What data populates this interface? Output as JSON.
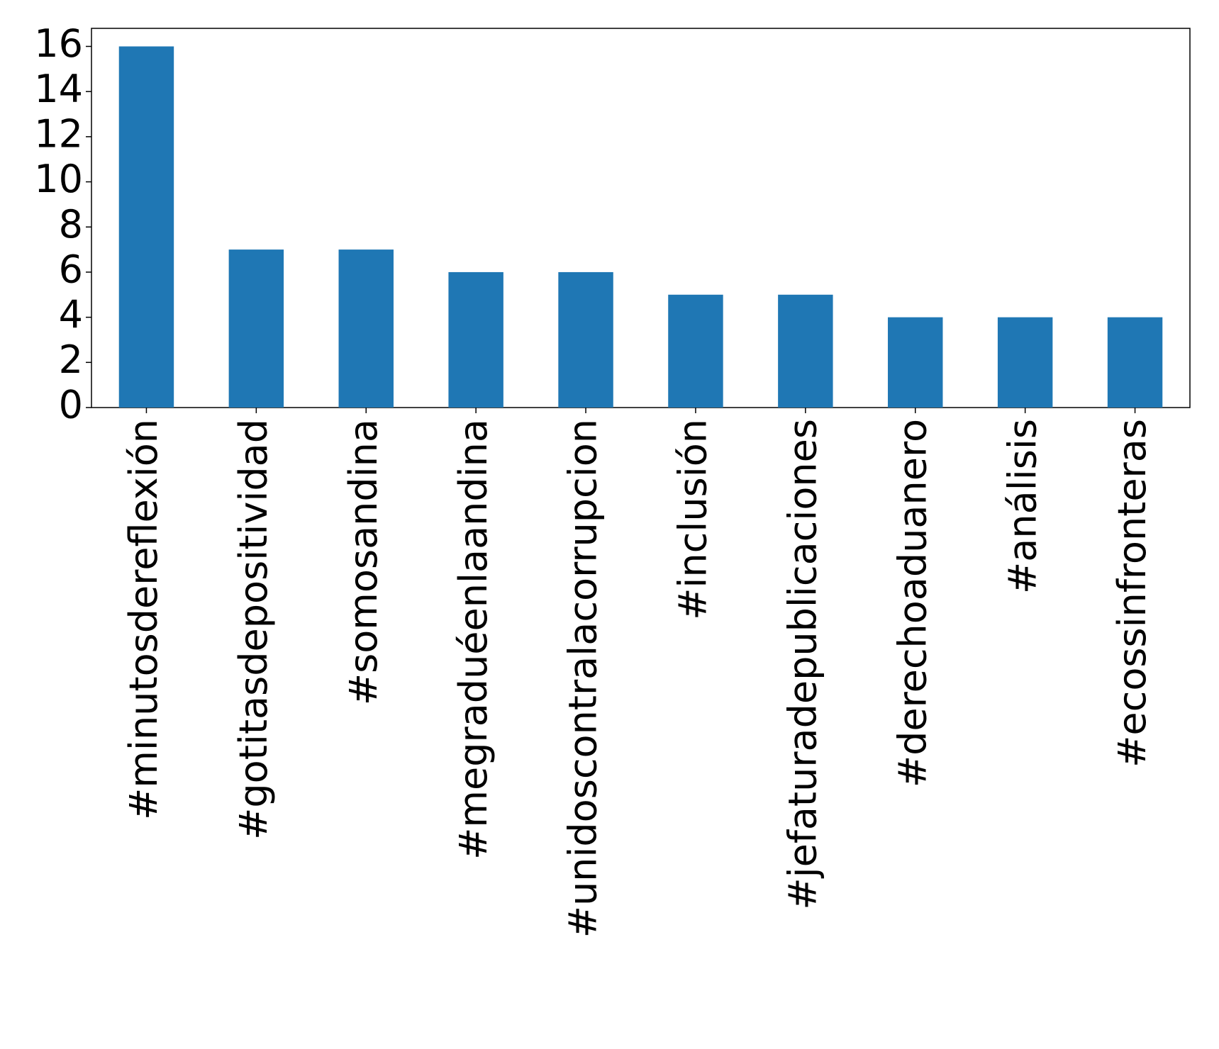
{
  "chart_data": {
    "type": "bar",
    "categories": [
      "#minutosdereflexión",
      "#gotitasdepositividad",
      "#somosandina",
      "#megraduéenlaandina",
      "#unidoscontralacorrupcion",
      "#inclusión",
      "#jefaturadepublicaciones",
      "#derechoaduanero",
      "#análisis",
      "#ecossinfronteras"
    ],
    "values": [
      16,
      7,
      7,
      6,
      6,
      5,
      5,
      4,
      4,
      4
    ],
    "color": "#1f77b4",
    "ylim": [
      0,
      16.8
    ],
    "yticks": [
      0,
      2,
      4,
      6,
      8,
      10,
      12,
      14,
      16
    ],
    "grid": false
  }
}
